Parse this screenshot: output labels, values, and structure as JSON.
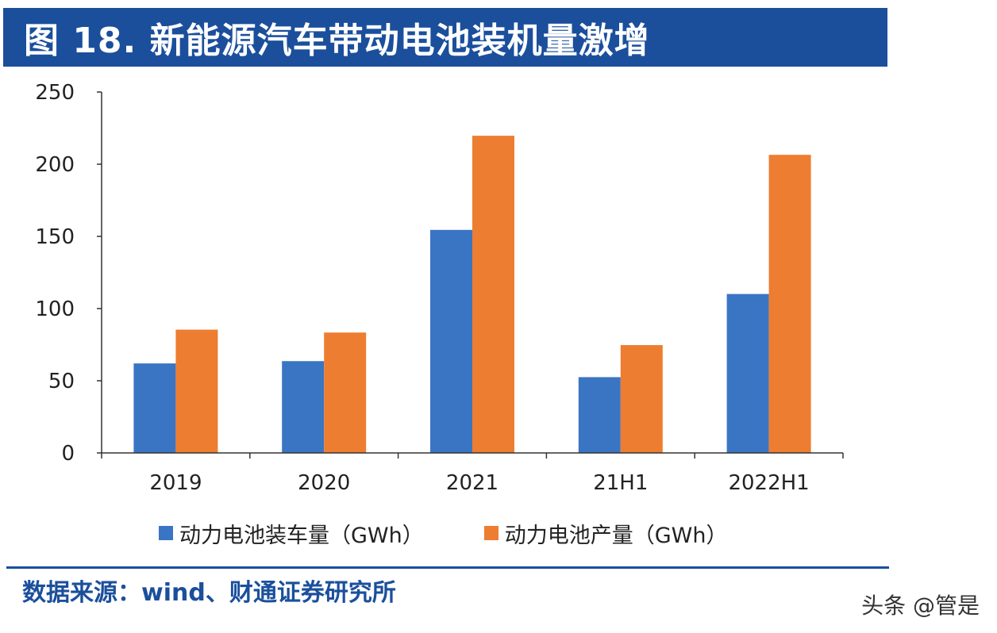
{
  "header": {
    "title": "图 18. 新能源汽车带动电池装机量激增"
  },
  "chart_data": {
    "type": "bar",
    "categories": [
      "2019",
      "2020",
      "2021",
      "21H1",
      "2022H1"
    ],
    "series": [
      {
        "name": "动力电池装车量（GWh）",
        "values": [
          62,
          63.6,
          154.5,
          52.5,
          110.1
        ],
        "color": "#3a75c4"
      },
      {
        "name": "动力电池产量（GWh）",
        "values": [
          85.4,
          83.4,
          219.7,
          74.7,
          206.5
        ],
        "color": "#ed7d31"
      }
    ],
    "ylim": [
      0,
      250
    ],
    "yticks": [
      "0",
      "50",
      "100",
      "150",
      "200",
      "250"
    ],
    "grid": false,
    "legend_position": "bottom"
  },
  "footer": {
    "source": "数据来源：wind、财通证券研究所",
    "watermark": "头条 @管是"
  }
}
